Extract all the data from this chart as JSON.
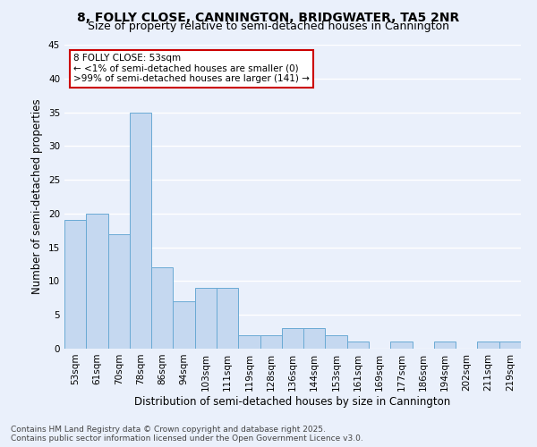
{
  "title": "8, FOLLY CLOSE, CANNINGTON, BRIDGWATER, TA5 2NR",
  "subtitle": "Size of property relative to semi-detached houses in Cannington",
  "xlabel": "Distribution of semi-detached houses by size in Cannington",
  "ylabel": "Number of semi-detached properties",
  "categories": [
    "53sqm",
    "61sqm",
    "70sqm",
    "78sqm",
    "86sqm",
    "94sqm",
    "103sqm",
    "111sqm",
    "119sqm",
    "128sqm",
    "136sqm",
    "144sqm",
    "153sqm",
    "161sqm",
    "169sqm",
    "177sqm",
    "186sqm",
    "194sqm",
    "202sqm",
    "211sqm",
    "219sqm"
  ],
  "values": [
    19,
    20,
    17,
    35,
    12,
    7,
    9,
    9,
    2,
    2,
    3,
    3,
    2,
    1,
    0,
    1,
    0,
    1,
    0,
    1,
    1
  ],
  "bar_color": "#c5d8f0",
  "bar_edge_color": "#6aaad4",
  "annotation_title": "8 FOLLY CLOSE: 53sqm",
  "annotation_line1": "← <1% of semi-detached houses are smaller (0)",
  "annotation_line2": ">99% of semi-detached houses are larger (141) →",
  "annotation_box_color": "#ffffff",
  "annotation_box_edge": "#cc0000",
  "ylim": [
    0,
    45
  ],
  "yticks": [
    0,
    5,
    10,
    15,
    20,
    25,
    30,
    35,
    40,
    45
  ],
  "bg_color": "#eaf0fb",
  "grid_color": "#ffffff",
  "footer": "Contains HM Land Registry data © Crown copyright and database right 2025.\nContains public sector information licensed under the Open Government Licence v3.0.",
  "title_fontsize": 10,
  "subtitle_fontsize": 9,
  "xlabel_fontsize": 8.5,
  "ylabel_fontsize": 8.5,
  "tick_fontsize": 7.5,
  "annotation_fontsize": 7.5,
  "footer_fontsize": 6.5
}
